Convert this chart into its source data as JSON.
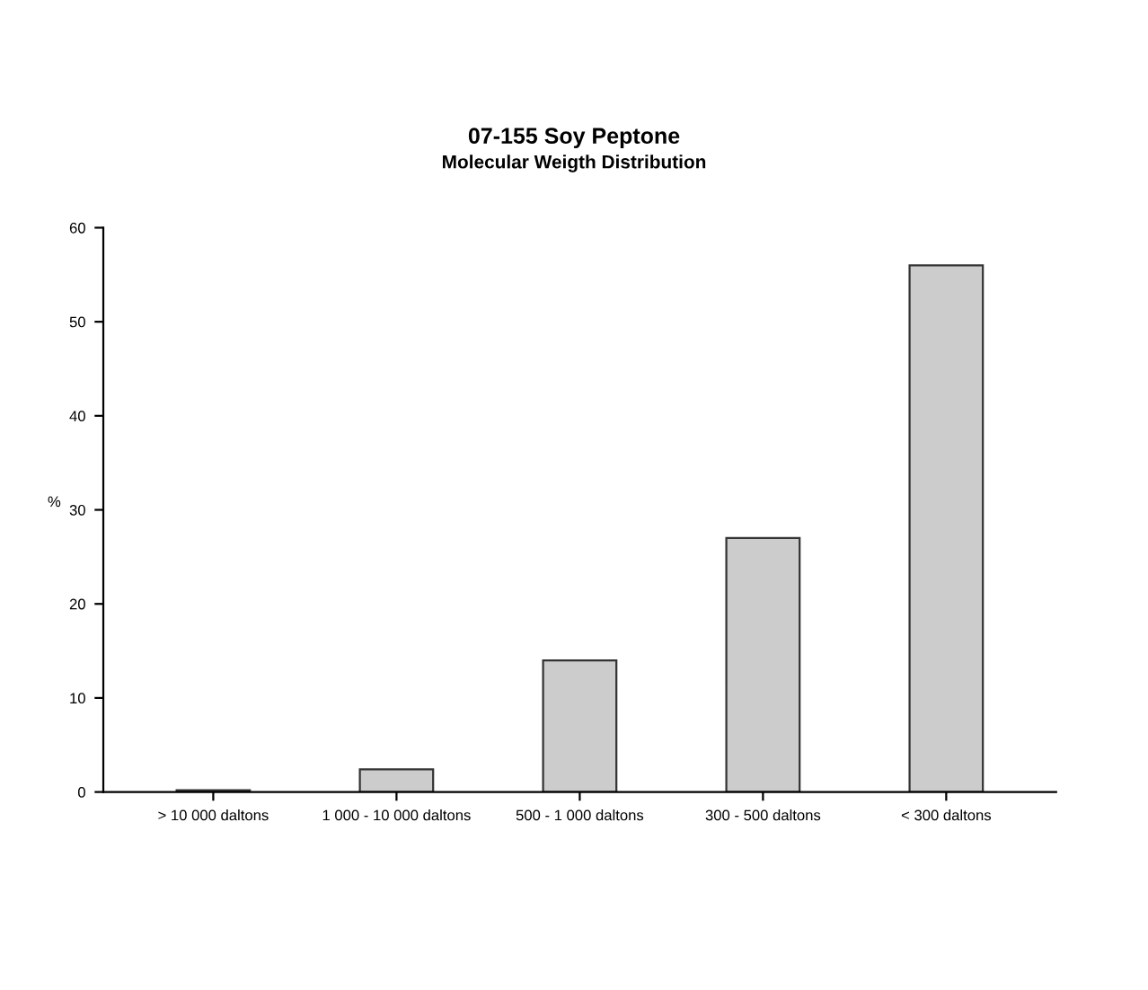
{
  "chart_data": {
    "type": "bar",
    "title": "07-155 Soy Peptone",
    "subtitle": "Molecular Weigth Distribution",
    "ylabel": "%",
    "categories": [
      "> 10 000 daltons",
      "1 000 - 10 000 daltons",
      "500 - 1 000 daltons",
      "300 - 500 daltons",
      "< 300 daltons"
    ],
    "values": [
      0.2,
      2.4,
      14,
      27,
      56
    ],
    "color": "#cccccc",
    "ylim": [
      0,
      60
    ],
    "yticks": [
      0,
      10,
      20,
      30,
      40,
      50,
      60
    ],
    "grid": false
  }
}
